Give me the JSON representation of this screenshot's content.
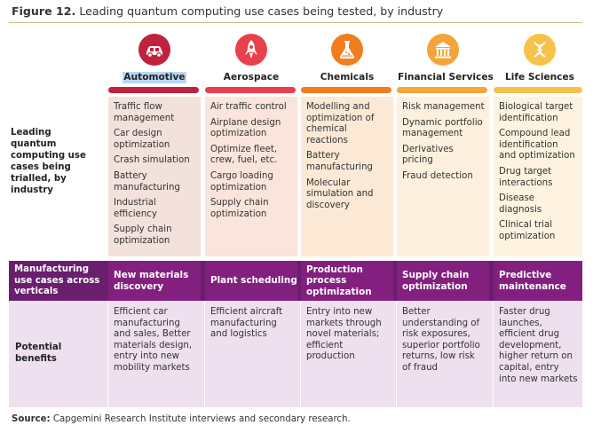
{
  "figure": {
    "label": "Figure 12.",
    "title": "Leading quantum computing use cases being tested, by industry"
  },
  "row_labels": {
    "use_cases": "Leading quantum computing use cases being trialled, by industry",
    "manufacturing": "Manufacturing use cases across verticals",
    "benefits": "Potential benefits"
  },
  "industries": [
    {
      "name": "Automotive",
      "icon": "car-icon",
      "color": "#c0223e",
      "bg": "#f3e1dc",
      "use_cases": [
        "Traffic flow management",
        "Car design optimization",
        "Crash simulation",
        "Battery manufacturing",
        "Industrial efficiency",
        "Supply chain optimization"
      ],
      "manufacturing": "New materials discovery",
      "benefit": "Efficient car manufacturing and sales, Better materials design, entry into new mobility markets"
    },
    {
      "name": "Aerospace",
      "icon": "rocket-icon",
      "color": "#e8414d",
      "bg": "#fbe4dc",
      "use_cases": [
        "Air traffic control",
        "Airplane design optimization",
        "Optimize fleet, crew, fuel, etc.",
        "Cargo loading optimization",
        "Supply chain optimization"
      ],
      "manufacturing": "Plant scheduling",
      "benefit": "Efficient aircraft manufacturing and logistics"
    },
    {
      "name": "Chemicals",
      "icon": "flask-icon",
      "color": "#f07d1f",
      "bg": "#fbe9d6",
      "use_cases": [
        "Modelling and optimization of chemical reactions",
        "Battery manufacturing",
        "Molecular simulation and discovery"
      ],
      "manufacturing": "Production process optimization",
      "benefit": "Entry into new markets through novel materials; efficient production"
    },
    {
      "name": "Financial Services",
      "icon": "bank-icon",
      "color": "#f5a43a",
      "bg": "#fdf0de",
      "use_cases": [
        "Risk management",
        "Dynamic portfolio management",
        "Derivatives pricing",
        "Fraud detection"
      ],
      "manufacturing": "Supply chain optimization",
      "benefit": "Better understanding of risk exposures, superior portfolio returns, low risk of fraud"
    },
    {
      "name": "Life Sciences",
      "icon": "dna-icon",
      "color": "#f7c24a",
      "bg": "#fdf3e0",
      "use_cases": [
        "Biological target identification",
        "Compound lead identification and optimization",
        "Drug target interactions",
        "Disease diagnosis",
        "Clinical trial optimization"
      ],
      "manufacturing": "Predictive maintenance",
      "benefit": "Faster drug launches, efficient drug development, higher return on capital, entry into new markets"
    }
  ],
  "source": {
    "label": "Source:",
    "text": "Capgemini Research Institute interviews and secondary research."
  }
}
